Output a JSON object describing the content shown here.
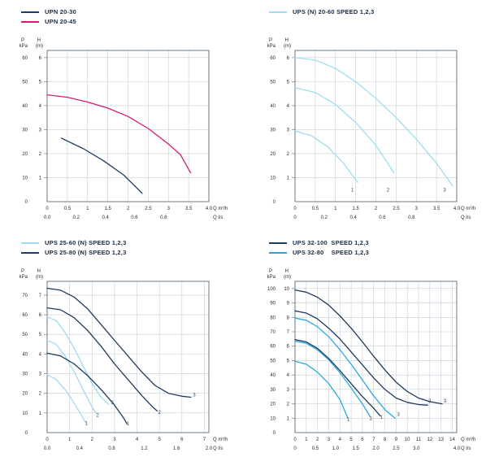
{
  "page": {
    "background": "#ffffff"
  },
  "colors": {
    "navy": "#1f3a5c",
    "magenta": "#d81b74",
    "pale_blue": "#9edcf2",
    "medium_blue": "#2aa9e0",
    "grid": "#c5cfd8",
    "border": "#5a6b7c",
    "tick_text": "#2b2b2b",
    "curve_label": "#33475e"
  },
  "chart_data": [
    {
      "type": "line",
      "legend": [
        {
          "label": "UPN 20-30",
          "color": "#1f3a5c"
        },
        {
          "label": "UPN 20-45",
          "color": "#d81b74"
        }
      ],
      "axes": {
        "y_primary": {
          "unit": [
            "P",
            "kPa"
          ],
          "ticks": [
            0,
            10,
            20,
            30,
            40,
            50,
            60
          ],
          "per_m": 10
        },
        "y_secondary": {
          "unit": [
            "H",
            "(m)"
          ],
          "ticks": [
            1,
            2,
            3,
            4,
            5,
            6
          ]
        },
        "y_max_m": 6.3,
        "x_primary": {
          "unit": "Q m³/h",
          "max": 4.0,
          "ticks": [
            0,
            0.5,
            1,
            1.5,
            2,
            2.5,
            3,
            3.5,
            4
          ],
          "labels": [
            "0",
            "0.5",
            "1",
            "1.5",
            "2",
            "2.5",
            "3",
            "3.5",
            "4.0"
          ]
        },
        "x_secondary": {
          "unit": "Q l/s",
          "factor": 3.6,
          "ticks": [
            0,
            0.2,
            0.4,
            0.6,
            0.8
          ],
          "labels": [
            "0.0",
            "0.2",
            "0.4",
            "0.6",
            "0.8"
          ]
        }
      },
      "series": [
        {
          "name": "UPN 20-45",
          "color": "#d81b74",
          "points": [
            [
              0,
              4.45
            ],
            [
              0.5,
              4.35
            ],
            [
              1,
              4.15
            ],
            [
              1.5,
              3.9
            ],
            [
              2,
              3.55
            ],
            [
              2.5,
              3.05
            ],
            [
              3,
              2.4
            ],
            [
              3.3,
              1.95
            ],
            [
              3.55,
              1.2
            ]
          ]
        },
        {
          "name": "UPN 20-30",
          "color": "#1f3a5c",
          "points": [
            [
              0.35,
              2.65
            ],
            [
              0.9,
              2.2
            ],
            [
              1.4,
              1.7
            ],
            [
              1.9,
              1.1
            ],
            [
              2.35,
              0.35
            ]
          ]
        }
      ],
      "point_labels": []
    },
    {
      "type": "line",
      "legend": [
        {
          "label": "UPS (N) 20-60 SPEED 1,2,3",
          "color": "#9edcf2"
        }
      ],
      "axes": {
        "y_primary": {
          "unit": [
            "P",
            "kPa"
          ],
          "ticks": [
            0,
            10,
            20,
            30,
            40,
            50,
            60
          ],
          "per_m": 10
        },
        "y_secondary": {
          "unit": [
            "H",
            "(m)"
          ],
          "ticks": [
            1,
            2,
            3,
            4,
            5,
            6
          ]
        },
        "y_max_m": 6.3,
        "x_primary": {
          "unit": "Q m³/h",
          "max": 4.0,
          "ticks": [
            0,
            0.5,
            1,
            1.5,
            2,
            2.5,
            3,
            3.5,
            4
          ],
          "labels": [
            "0",
            "0.5",
            "1",
            "1.5",
            "2",
            "2.5",
            "3",
            "3.5",
            "4.0"
          ]
        },
        "x_secondary": {
          "unit": "Q l/s",
          "factor": 3.6,
          "ticks": [
            0,
            0.2,
            0.4,
            0.6,
            0.8
          ],
          "labels": [
            "0",
            "0.2",
            "0.4",
            "0.6",
            "0.8"
          ]
        }
      },
      "series": [
        {
          "name": "speed 1",
          "color": "#9edcf2",
          "points": [
            [
              0,
              2.95
            ],
            [
              0.4,
              2.75
            ],
            [
              0.8,
              2.3
            ],
            [
              1.2,
              1.6
            ],
            [
              1.55,
              0.8
            ]
          ]
        },
        {
          "name": "speed 2",
          "color": "#9edcf2",
          "points": [
            [
              0,
              4.75
            ],
            [
              0.5,
              4.55
            ],
            [
              1,
              4.05
            ],
            [
              1.5,
              3.3
            ],
            [
              2,
              2.35
            ],
            [
              2.45,
              1.2
            ]
          ]
        },
        {
          "name": "speed 3",
          "color": "#9edcf2",
          "points": [
            [
              0,
              6.0
            ],
            [
              0.5,
              5.9
            ],
            [
              1,
              5.55
            ],
            [
              1.5,
              5.0
            ],
            [
              2,
              4.3
            ],
            [
              2.5,
              3.5
            ],
            [
              3,
              2.6
            ],
            [
              3.5,
              1.6
            ],
            [
              3.9,
              0.65
            ]
          ]
        }
      ],
      "point_labels": [
        {
          "text": "1",
          "x": 1.42,
          "y": 0.42
        },
        {
          "text": "2",
          "x": 2.3,
          "y": 0.42
        },
        {
          "text": "3",
          "x": 3.7,
          "y": 0.42
        }
      ]
    },
    {
      "type": "line",
      "legend": [
        {
          "label": "UPS 25-60 (N) SPEED 1,2,3",
          "color": "#9edcf2"
        },
        {
          "label": "UPS 25-80 (N) SPEED 1,2,3",
          "color": "#1f3a5c"
        }
      ],
      "axes": {
        "y_primary": {
          "unit": [
            "P",
            "kPa"
          ],
          "ticks": [
            0,
            10,
            20,
            30,
            40,
            50,
            60,
            70
          ],
          "per_m": 10
        },
        "y_secondary": {
          "unit": [
            "H",
            "(m)"
          ],
          "ticks": [
            1,
            2,
            3,
            4,
            5,
            6,
            7
          ]
        },
        "y_max_m": 7.7,
        "x_primary": {
          "unit": "Q m³/h",
          "max": 7.2,
          "ticks": [
            0,
            1,
            2,
            3,
            4,
            5,
            6,
            7
          ],
          "labels": [
            "0",
            "1",
            "2",
            "3",
            "4",
            "5",
            "6",
            "7"
          ]
        },
        "x_secondary": {
          "unit": "Q l/s",
          "factor": 3.6,
          "ticks": [
            0,
            0.4,
            0.8,
            1.2,
            1.6,
            2.0
          ],
          "labels": [
            "0.0",
            "0.4",
            "0.8",
            "1.2",
            "1.6",
            "2.0"
          ]
        }
      },
      "series": [
        {
          "name": "25-60 speed 1",
          "color": "#9edcf2",
          "points": [
            [
              0,
              2.95
            ],
            [
              0.4,
              2.7
            ],
            [
              0.8,
              2.2
            ],
            [
              1.2,
              1.5
            ],
            [
              1.6,
              0.75
            ],
            [
              1.72,
              0.5
            ]
          ]
        },
        {
          "name": "25-60 speed 2",
          "color": "#9edcf2",
          "points": [
            [
              0,
              4.7
            ],
            [
              0.4,
              4.5
            ],
            [
              0.8,
              3.9
            ],
            [
              1.2,
              3.1
            ],
            [
              1.6,
              2.2
            ],
            [
              2,
              1.3
            ],
            [
              2.2,
              0.95
            ]
          ]
        },
        {
          "name": "25-60 speed 3",
          "color": "#9edcf2",
          "points": [
            [
              0,
              5.9
            ],
            [
              0.4,
              5.7
            ],
            [
              0.8,
              5.1
            ],
            [
              1.2,
              4.3
            ],
            [
              1.6,
              3.4
            ],
            [
              2,
              2.5
            ],
            [
              2.4,
              1.8
            ],
            [
              2.75,
              1.45
            ]
          ]
        },
        {
          "name": "25-80 speed 1",
          "color": "#1f3a5c",
          "points": [
            [
              0,
              4.05
            ],
            [
              0.6,
              3.9
            ],
            [
              1.2,
              3.5
            ],
            [
              1.8,
              2.9
            ],
            [
              2.4,
              2.2
            ],
            [
              3,
              1.4
            ],
            [
              3.4,
              0.75
            ],
            [
              3.55,
              0.45
            ]
          ]
        },
        {
          "name": "25-80 speed 2",
          "color": "#1f3a5c",
          "points": [
            [
              0,
              6.35
            ],
            [
              0.6,
              6.25
            ],
            [
              1.2,
              5.85
            ],
            [
              1.8,
              5.2
            ],
            [
              2.4,
              4.4
            ],
            [
              3,
              3.5
            ],
            [
              3.6,
              2.7
            ],
            [
              4.2,
              1.9
            ],
            [
              4.7,
              1.3
            ],
            [
              4.9,
              1.1
            ]
          ]
        },
        {
          "name": "25-80 speed 3",
          "color": "#1f3a5c",
          "points": [
            [
              0,
              7.35
            ],
            [
              0.6,
              7.25
            ],
            [
              1.2,
              6.9
            ],
            [
              1.8,
              6.3
            ],
            [
              2.4,
              5.5
            ],
            [
              3,
              4.7
            ],
            [
              3.6,
              3.9
            ],
            [
              4.2,
              3.1
            ],
            [
              4.8,
              2.4
            ],
            [
              5.4,
              2.0
            ],
            [
              6,
              1.85
            ],
            [
              6.4,
              1.8
            ]
          ]
        }
      ],
      "point_labels": [
        {
          "text": "1",
          "x": 1.75,
          "y": 0.4
        },
        {
          "text": "2",
          "x": 2.25,
          "y": 0.8
        },
        {
          "text": "3",
          "x": 2.9,
          "y": 1.45
        },
        {
          "text": "1",
          "x": 3.6,
          "y": 0.38
        },
        {
          "text": "2",
          "x": 5.0,
          "y": 0.95
        },
        {
          "text": "3",
          "x": 6.55,
          "y": 1.85
        }
      ]
    },
    {
      "type": "line",
      "legend": [
        {
          "label": "UPS 32-100  SPEED 1,2,3",
          "color": "#1f3a5c"
        },
        {
          "label": "UPS 32-80    SPEED 1,2,3",
          "color": "#2aa9e0"
        }
      ],
      "axes": {
        "y_primary": {
          "unit": [
            "P",
            "kPa"
          ],
          "ticks": [
            0,
            10,
            20,
            30,
            40,
            50,
            60,
            70,
            80,
            90,
            100
          ],
          "per_m": 10
        },
        "y_secondary": {
          "unit": [
            "H",
            "(m)"
          ],
          "ticks": [
            1,
            2,
            3,
            4,
            5,
            6,
            7,
            8,
            9,
            10
          ]
        },
        "y_max_m": 10.5,
        "x_primary": {
          "unit": "Q m³/h",
          "max": 14.4,
          "ticks": [
            0,
            1,
            2,
            3,
            4,
            5,
            6,
            7,
            8,
            9,
            10,
            11,
            12,
            13,
            14
          ],
          "labels": [
            "0",
            "1",
            "2",
            "3",
            "4",
            "5",
            "6",
            "7",
            "8",
            "9",
            "10",
            "11",
            "12",
            "13",
            "14"
          ]
        },
        "x_secondary": {
          "unit": "Q l/s",
          "factor": 3.6,
          "ticks": [
            0,
            0.5,
            1.0,
            1.5,
            2.0,
            2.5,
            3.0,
            4.0
          ],
          "labels": [
            "0",
            "0.5",
            "1.0",
            "1.5",
            "2.0",
            "2.5",
            "3.0",
            "4.0"
          ]
        }
      },
      "series": [
        {
          "name": "32-80 speed 1",
          "color": "#2aa9e0",
          "points": [
            [
              0,
              4.95
            ],
            [
              1,
              4.75
            ],
            [
              2,
              4.2
            ],
            [
              3,
              3.4
            ],
            [
              4,
              2.3
            ],
            [
              4.7,
              1.0
            ]
          ]
        },
        {
          "name": "32-80 speed 2",
          "color": "#2aa9e0",
          "points": [
            [
              0,
              6.35
            ],
            [
              1,
              6.2
            ],
            [
              2,
              5.75
            ],
            [
              3,
              5.05
            ],
            [
              4,
              4.15
            ],
            [
              5,
              3.1
            ],
            [
              6,
              2.0
            ],
            [
              6.7,
              1.1
            ]
          ]
        },
        {
          "name": "32-80 speed 3",
          "color": "#2aa9e0",
          "points": [
            [
              0,
              7.95
            ],
            [
              1,
              7.8
            ],
            [
              2,
              7.35
            ],
            [
              3,
              6.65
            ],
            [
              4,
              5.75
            ],
            [
              5,
              4.75
            ],
            [
              6,
              3.65
            ],
            [
              7,
              2.55
            ],
            [
              8,
              1.6
            ],
            [
              8.9,
              1.0
            ]
          ]
        },
        {
          "name": "32-100 speed 1",
          "color": "#1f3a5c",
          "points": [
            [
              0,
              6.45
            ],
            [
              1,
              6.3
            ],
            [
              2,
              5.85
            ],
            [
              3,
              5.15
            ],
            [
              4,
              4.3
            ],
            [
              5,
              3.4
            ],
            [
              6,
              2.5
            ],
            [
              7,
              1.7
            ],
            [
              7.6,
              1.15
            ]
          ]
        },
        {
          "name": "32-100 speed 2",
          "color": "#1f3a5c",
          "points": [
            [
              0,
              8.45
            ],
            [
              1,
              8.3
            ],
            [
              2,
              7.9
            ],
            [
              3,
              7.25
            ],
            [
              4,
              6.5
            ],
            [
              5,
              5.6
            ],
            [
              6,
              4.7
            ],
            [
              7,
              3.8
            ],
            [
              8,
              3.0
            ],
            [
              9,
              2.4
            ],
            [
              10,
              2.1
            ],
            [
              11,
              1.95
            ],
            [
              11.8,
              1.9
            ]
          ]
        },
        {
          "name": "32-100 speed 3",
          "color": "#1f3a5c",
          "points": [
            [
              0,
              9.9
            ],
            [
              1,
              9.75
            ],
            [
              2,
              9.4
            ],
            [
              3,
              8.85
            ],
            [
              4,
              8.1
            ],
            [
              5,
              7.25
            ],
            [
              6,
              6.3
            ],
            [
              7,
              5.3
            ],
            [
              8,
              4.35
            ],
            [
              9,
              3.5
            ],
            [
              10,
              2.85
            ],
            [
              11,
              2.4
            ],
            [
              12,
              2.15
            ],
            [
              13.1,
              2.0
            ]
          ]
        }
      ],
      "point_labels": [
        {
          "text": "1",
          "x": 4.75,
          "y": 0.8
        },
        {
          "text": "2",
          "x": 6.75,
          "y": 0.85
        },
        {
          "text": "1",
          "x": 7.7,
          "y": 0.95
        },
        {
          "text": "3",
          "x": 9.2,
          "y": 1.15
        },
        {
          "text": "2",
          "x": 12.0,
          "y": 2.1
        },
        {
          "text": "3",
          "x": 13.35,
          "y": 2.1
        }
      ]
    }
  ]
}
